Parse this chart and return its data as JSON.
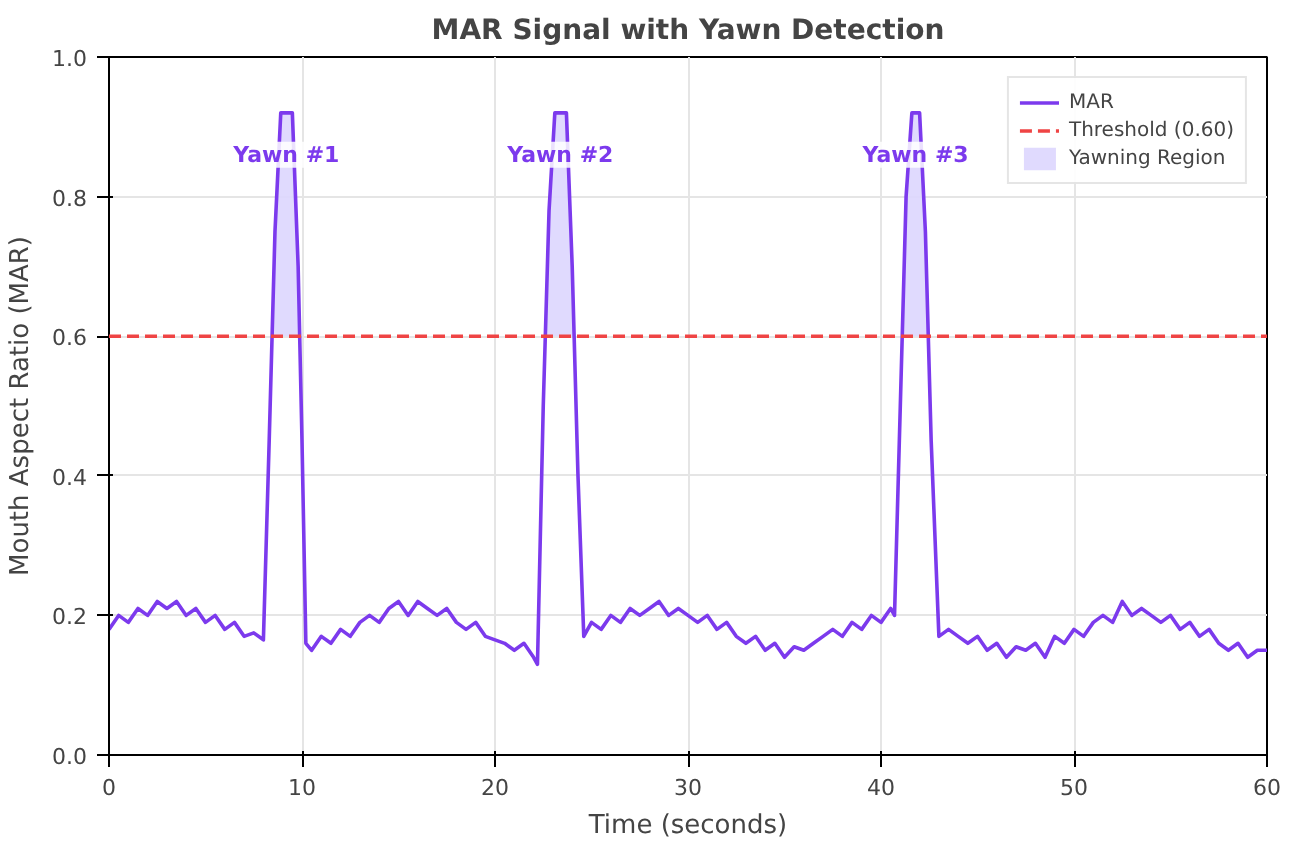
{
  "chart_data": {
    "type": "line",
    "title": "MAR Signal with Yawn Detection",
    "xlabel": "Time (seconds)",
    "ylabel": "Mouth Aspect Ratio (MAR)",
    "xlim": [
      0,
      60
    ],
    "xticks": [
      0,
      10,
      20,
      30,
      40,
      50,
      60
    ],
    "ylim": [
      0,
      1
    ],
    "yticks": [
      {
        "value": 0,
        "label": "0.0"
      },
      {
        "value": 0.2,
        "label": "0.2"
      },
      {
        "value": 0.4,
        "label": "0.4"
      },
      {
        "value": 0.6,
        "label": "0.6"
      },
      {
        "value": 0.8,
        "label": "0.8"
      },
      {
        "value": 1,
        "label": "1.0"
      }
    ],
    "grid": true,
    "legend": "top right",
    "series": [
      {
        "name": "MAR",
        "color": "#7c3aed",
        "x": [
          0,
          0.5,
          1,
          1.5,
          2,
          2.5,
          3,
          3.5,
          4,
          4.5,
          5,
          5.5,
          6,
          6.5,
          7,
          7.5,
          8,
          8.3,
          8.6,
          8.9,
          9.5,
          9.8,
          10.0,
          10.2,
          10.5,
          11,
          11.5,
          12,
          12.5,
          13,
          13.5,
          14,
          14.5,
          15,
          15.5,
          16,
          16.5,
          17,
          17.5,
          18,
          18.5,
          19,
          19.5,
          20,
          20.5,
          21,
          21.5,
          22,
          22.2,
          22.5,
          22.8,
          23.1,
          23.7,
          24.0,
          24.3,
          24.6,
          25,
          25.5,
          26,
          26.5,
          27,
          27.5,
          28,
          28.5,
          29,
          29.5,
          30,
          30.5,
          31,
          31.5,
          32,
          32.5,
          33,
          33.5,
          34,
          34.5,
          35,
          35.5,
          36,
          36.5,
          37,
          37.5,
          38,
          38.5,
          39,
          39.5,
          40,
          40.5,
          40.7,
          41.0,
          41.3,
          41.6,
          42.0,
          42.3,
          42.6,
          43.0,
          43.5,
          44,
          44.5,
          45,
          45.5,
          46,
          46.5,
          47,
          47.5,
          48,
          48.5,
          49,
          49.5,
          50,
          50.5,
          51,
          51.5,
          52,
          52.5,
          53,
          53.5,
          54,
          54.5,
          55,
          55.5,
          56,
          56.5,
          57,
          57.5,
          58,
          58.5,
          59,
          59.5,
          60
        ],
        "values": [
          0.18,
          0.2,
          0.19,
          0.21,
          0.2,
          0.22,
          0.21,
          0.22,
          0.2,
          0.21,
          0.19,
          0.2,
          0.18,
          0.19,
          0.17,
          0.175,
          0.165,
          0.45,
          0.75,
          0.92,
          0.92,
          0.7,
          0.45,
          0.16,
          0.15,
          0.17,
          0.16,
          0.18,
          0.17,
          0.19,
          0.2,
          0.19,
          0.21,
          0.22,
          0.2,
          0.22,
          0.21,
          0.2,
          0.21,
          0.19,
          0.18,
          0.19,
          0.17,
          0.165,
          0.16,
          0.15,
          0.16,
          0.14,
          0.13,
          0.5,
          0.78,
          0.92,
          0.92,
          0.7,
          0.4,
          0.17,
          0.19,
          0.18,
          0.2,
          0.19,
          0.21,
          0.2,
          0.21,
          0.22,
          0.2,
          0.21,
          0.2,
          0.19,
          0.2,
          0.18,
          0.19,
          0.17,
          0.16,
          0.17,
          0.15,
          0.16,
          0.14,
          0.155,
          0.15,
          0.16,
          0.17,
          0.18,
          0.17,
          0.19,
          0.18,
          0.2,
          0.19,
          0.21,
          0.2,
          0.5,
          0.8,
          0.92,
          0.92,
          0.75,
          0.45,
          0.17,
          0.18,
          0.17,
          0.16,
          0.17,
          0.15,
          0.16,
          0.14,
          0.155,
          0.15,
          0.16,
          0.14,
          0.17,
          0.16,
          0.18,
          0.17,
          0.19,
          0.2,
          0.19,
          0.22,
          0.2,
          0.21,
          0.2,
          0.19,
          0.2,
          0.18,
          0.19,
          0.17,
          0.18,
          0.16,
          0.15,
          0.16,
          0.14,
          0.15,
          0.15
        ]
      },
      {
        "name": "Yawning Region",
        "type": "area",
        "color": "#ddd6fe",
        "x": [
          8.45,
          8.6,
          8.9,
          9.5,
          9.8,
          9.88,
          9.9,
          22.61,
          22.8,
          23.1,
          23.7,
          24.0,
          24.1,
          24.2,
          41.1,
          41.3,
          41.6,
          42.0,
          42.3,
          42.45
        ],
        "values": [
          0.6,
          0.75,
          0.92,
          0.92,
          0.7,
          0.6,
          null,
          0.6,
          0.78,
          0.92,
          0.92,
          0.7,
          0.6,
          null,
          0.6,
          0.8,
          0.92,
          0.92,
          0.75,
          0.6
        ]
      }
    ],
    "ref_lines": [
      {
        "axis": "y",
        "value": 0.6,
        "label": "Threshold (0.60)",
        "color": "#ef4444",
        "line_style": "dashed"
      }
    ],
    "annotations": [
      "Yawn #1",
      "Yawn #2",
      "Yawn #3"
    ]
  }
}
